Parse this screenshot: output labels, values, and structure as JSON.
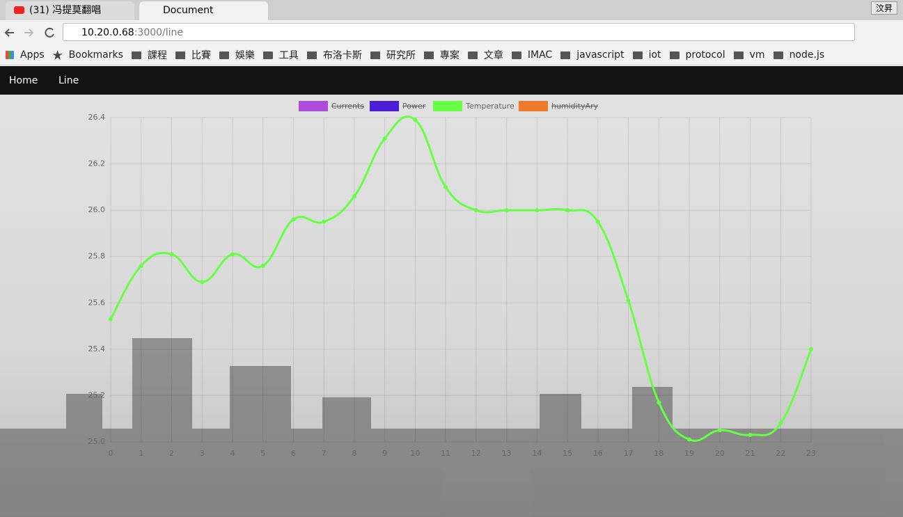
{
  "browser": {
    "tabs": [
      "(31) 冯提莫翻唱",
      "Document"
    ],
    "url_host": "10.20.0.68",
    "url_path": ":3000/line",
    "profile": "汶昇",
    "bookmarks": [
      "Apps",
      "Bookmarks",
      "課程",
      "比賽",
      "娛樂",
      "工具",
      "布洛卡斯",
      "研究所",
      "專案",
      "文章",
      "IMAC",
      "javascript",
      "iot",
      "protocol",
      "vm",
      "node.js"
    ]
  },
  "nav": [
    "Home",
    "Line"
  ],
  "chart_data": {
    "type": "line",
    "categories": [
      "0",
      "1",
      "2",
      "3",
      "4",
      "5",
      "6",
      "7",
      "8",
      "9",
      "10",
      "11",
      "12",
      "13",
      "14",
      "15",
      "16",
      "17",
      "18",
      "19",
      "20",
      "21",
      "22",
      "23"
    ],
    "ylim": [
      25,
      26.4
    ],
    "yticks": [
      {
        "value": 25,
        "label": "25.0"
      },
      25.2,
      25.4,
      25.6,
      25.8,
      {
        "value": 26,
        "label": "26.0"
      },
      26.2,
      26.4
    ],
    "grid": true,
    "series": [
      {
        "name": "Currents",
        "color": "#b04cdc",
        "hidden": true
      },
      {
        "name": "Power",
        "color": "#4b1fd8",
        "hidden": true
      },
      {
        "name": "Temperature",
        "color": "#66ff44",
        "hidden": false,
        "values": [
          25.53,
          25.76,
          25.81,
          25.69,
          25.81,
          25.76,
          25.96,
          25.95,
          26.06,
          26.31,
          26.39,
          26.1,
          26.0,
          26.0,
          26.0,
          26.0,
          25.95,
          25.61,
          25.17,
          25.01,
          25.05,
          25.03,
          25.08,
          25.4
        ]
      },
      {
        "name": "humidityAry",
        "color": "#f07a2a",
        "hidden": true
      }
    ]
  }
}
